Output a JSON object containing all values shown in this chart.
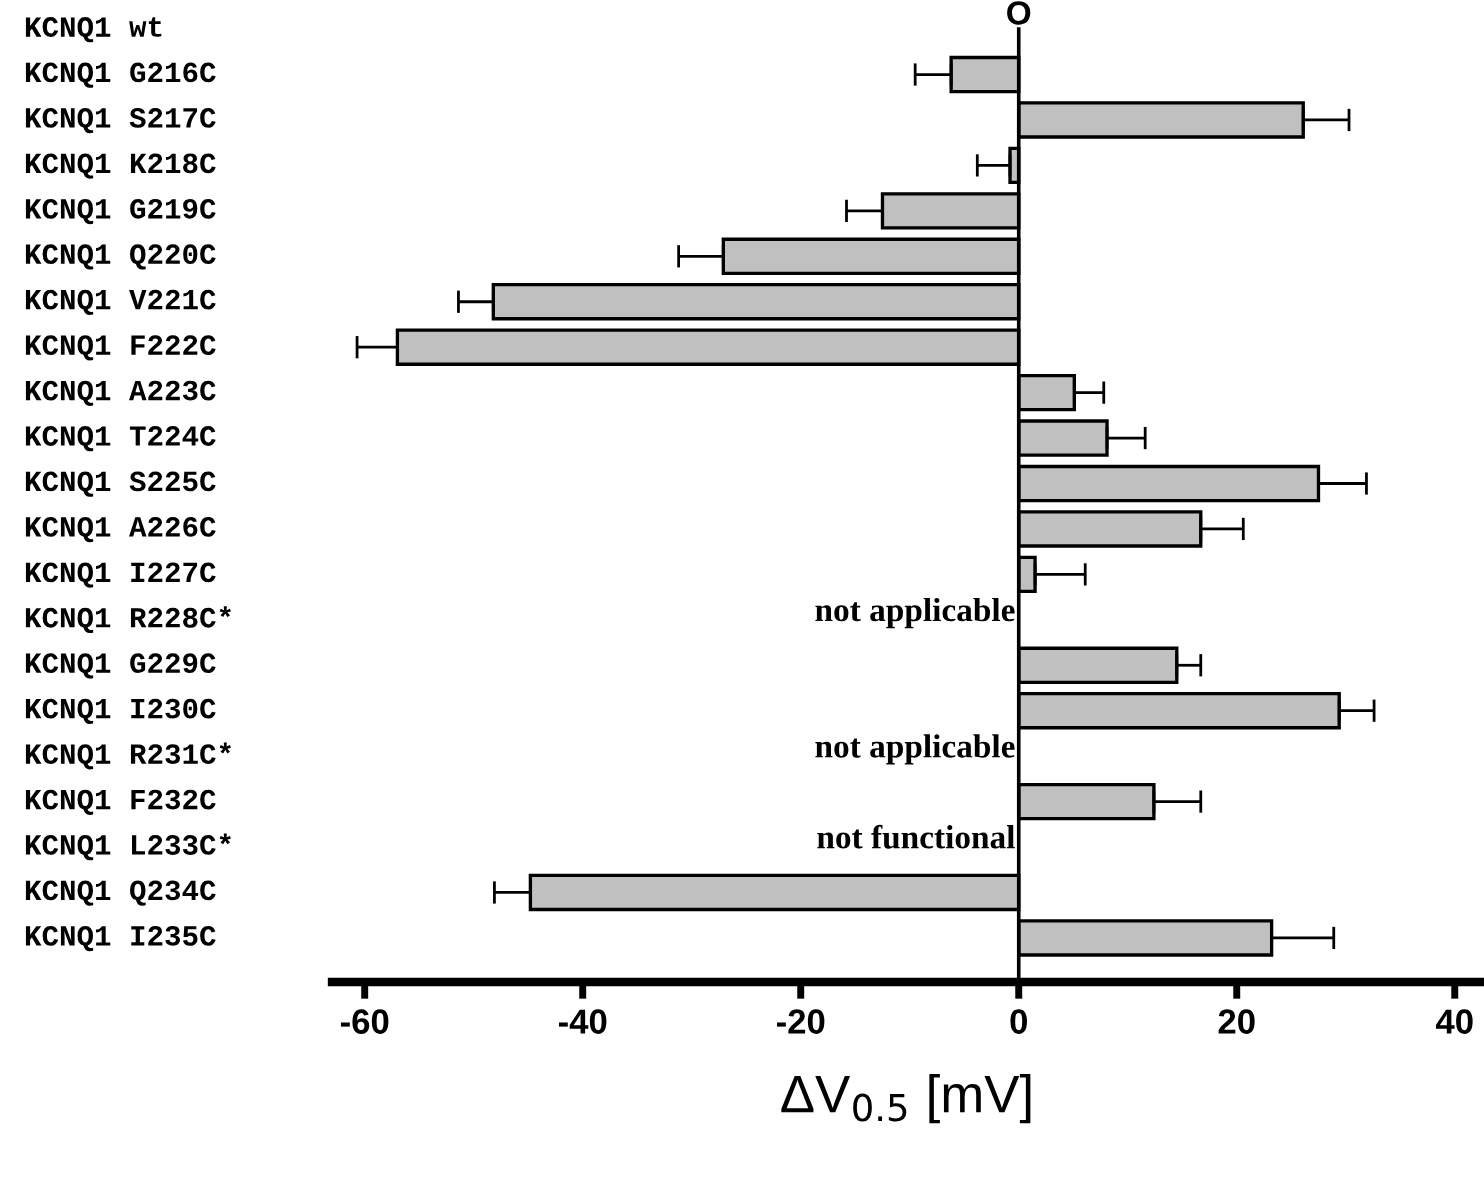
{
  "chart_data": {
    "type": "bar",
    "orientation": "horizontal",
    "categories": [
      "KCNQ1 wt",
      "KCNQ1 G216C",
      "KCNQ1 S217C",
      "KCNQ1 K218C",
      "KCNQ1 G219C",
      "KCNQ1 Q220C",
      "KCNQ1 V221C",
      "KCNQ1 F222C",
      "KCNQ1 A223C",
      "KCNQ1 T224C",
      "KCNQ1 S225C",
      "KCNQ1 A226C",
      "KCNQ1 I227C",
      "KCNQ1 R228C*",
      "KCNQ1 G229C",
      "KCNQ1 I230C",
      "KCNQ1 R231C*",
      "KCNQ1 F232C",
      "KCNQ1 L233C*",
      "KCNQ1 Q234C",
      "KCNQ1 I235C"
    ],
    "values": [
      0,
      -6.2,
      26.1,
      -0.8,
      -12.5,
      -27.1,
      -48.2,
      -57.0,
      5.1,
      8.1,
      27.5,
      16.7,
      1.5,
      null,
      14.5,
      29.4,
      null,
      12.4,
      null,
      -44.8,
      23.2
    ],
    "errors": [
      null,
      [
        -9.5,
        -6.2
      ],
      [
        26.1,
        30.3
      ],
      [
        -3.8,
        -0.8
      ],
      [
        -15.8,
        -12.5
      ],
      [
        -31.2,
        -27.1
      ],
      [
        -51.4,
        -48.2
      ],
      [
        -60.7,
        -57.0
      ],
      [
        5.1,
        7.8
      ],
      [
        8.1,
        11.6
      ],
      [
        27.5,
        31.9
      ],
      [
        16.7,
        20.6
      ],
      [
        1.5,
        6.1
      ],
      null,
      [
        14.5,
        16.7
      ],
      [
        29.4,
        32.6
      ],
      null,
      [
        12.4,
        16.7
      ],
      null,
      [
        -48.1,
        -44.8
      ],
      [
        23.2,
        28.9
      ]
    ],
    "ref_lines": [
      {
        "axis": "x",
        "value": 0
      }
    ],
    "value_labels": [
      "O",
      null,
      null,
      null,
      null,
      null,
      null,
      null,
      null,
      null,
      null,
      null,
      null,
      "not applicable",
      null,
      null,
      "not applicable",
      null,
      "not functional",
      null,
      null
    ],
    "color": "#c0c0c0",
    "xlim": [
      -63,
      42.5
    ],
    "xticks": [
      -60,
      -40,
      -20,
      0,
      20,
      40
    ],
    "xlabel": "ΔV$_{0.5}$ [mV]",
    "legend": false
  }
}
